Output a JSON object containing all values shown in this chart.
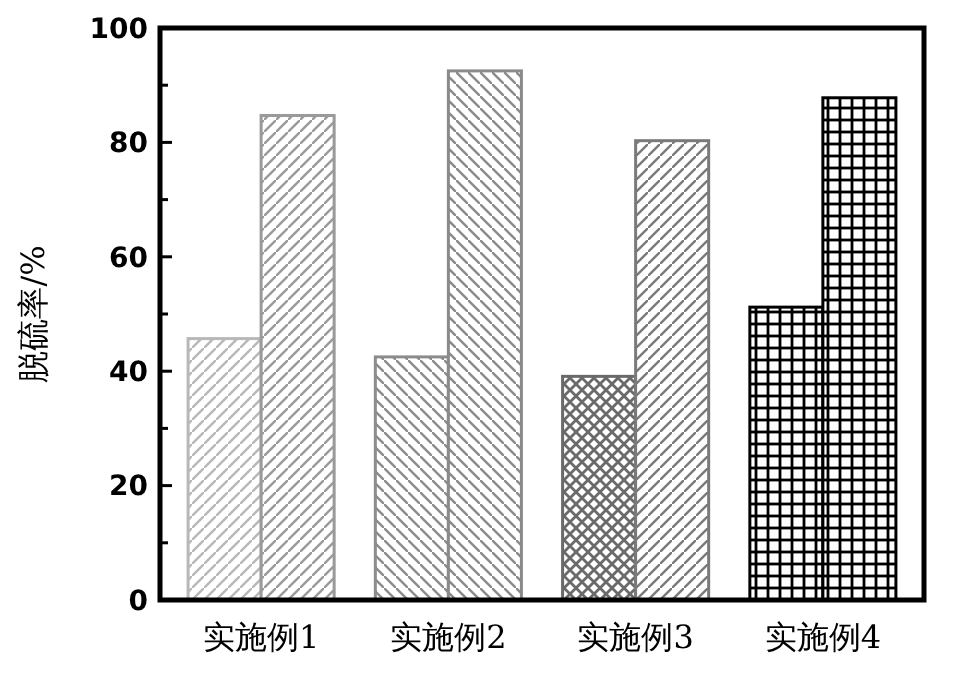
{
  "chart_data": {
    "type": "bar",
    "ylabel": "脱硫率/%",
    "categories": [
      "实施例1",
      "实施例2",
      "实施例3",
      "实施例4"
    ],
    "series": [
      {
        "colors": [
          "#b8b8b8",
          "#8c8c8c",
          "#6a6a6a",
          "#000000"
        ],
        "values": [
          45.7,
          42.5,
          39.1,
          51.2
        ]
      },
      {
        "colors": [
          "#9a9a9a",
          "#8a8a8a",
          "#7a7a7a",
          "#000000"
        ],
        "values": [
          84.7,
          92.5,
          80.3,
          87.8
        ]
      }
    ],
    "ylim": [
      0,
      100
    ],
    "yticks": [
      0,
      {
        "value": 10,
        "label": null
      },
      20,
      {
        "value": 30,
        "label": null
      },
      40,
      {
        "value": 50,
        "label": null
      },
      60,
      {
        "value": 70,
        "label": null
      },
      80,
      {
        "value": 90,
        "label": null
      },
      100
    ],
    "grid": false
  }
}
